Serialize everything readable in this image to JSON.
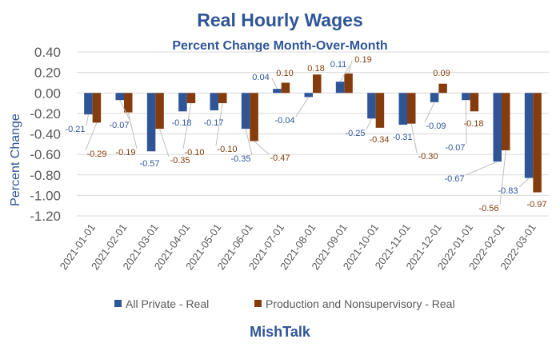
{
  "chart_data": {
    "type": "bar",
    "title": "Real Hourly Wages",
    "subtitle": "Percent Change Month-Over-Month",
    "xlabel": "",
    "ylabel": "Percent Change",
    "ylim": [
      -1.2,
      0.4
    ],
    "yticks": [
      0.4,
      0.2,
      0.0,
      -0.2,
      -0.4,
      -0.6,
      -0.8,
      -1.0,
      -1.2
    ],
    "ytick_labels": [
      "0.40",
      "0.20",
      "0.00",
      "-0.20",
      "-0.40",
      "-0.60",
      "-0.80",
      "-1.00",
      "-1.20"
    ],
    "grid": true,
    "legend_position": "bottom",
    "categories": [
      "2021-01-01",
      "2021-02-01",
      "2021-03-01",
      "2021-04-01",
      "2021-05-01",
      "2021-06-01",
      "2021-07-01",
      "2021-08-01",
      "2021-09-01",
      "2021-10-01",
      "2021-11-01",
      "2021-12-01",
      "2022-01-01",
      "2022-02-01",
      "2022-03-01"
    ],
    "series": [
      {
        "name": "All Private - Real",
        "color": "#2f5597",
        "values": [
          -0.21,
          -0.07,
          -0.57,
          -0.18,
          -0.17,
          -0.35,
          0.04,
          -0.04,
          0.11,
          -0.25,
          -0.31,
          -0.09,
          -0.07,
          -0.67,
          -0.83
        ],
        "labels": [
          "-0.21",
          "-0.07",
          "-0.57",
          "-0.18",
          "-0.17",
          "-0.35",
          "0.04",
          "-0.04",
          "0.11",
          "-0.25",
          "-0.31",
          "-0.09",
          "-0.07",
          "-0.67",
          "-0.83"
        ]
      },
      {
        "name": "Production and Nonsupervisory - Real",
        "color": "#843c0c",
        "values": [
          -0.29,
          -0.19,
          -0.35,
          -0.1,
          -0.1,
          -0.47,
          0.1,
          0.18,
          0.19,
          -0.34,
          -0.3,
          0.09,
          -0.18,
          -0.56,
          -0.97
        ],
        "labels": [
          "-0.29",
          "-0.19",
          "-0.35",
          "-0.10",
          "-0.10",
          "-0.47",
          "0.10",
          "0.18",
          "0.19",
          "-0.34",
          "-0.30",
          "0.09",
          "-0.18",
          "-0.56",
          "-0.97"
        ]
      }
    ],
    "footer": "MishTalk"
  }
}
